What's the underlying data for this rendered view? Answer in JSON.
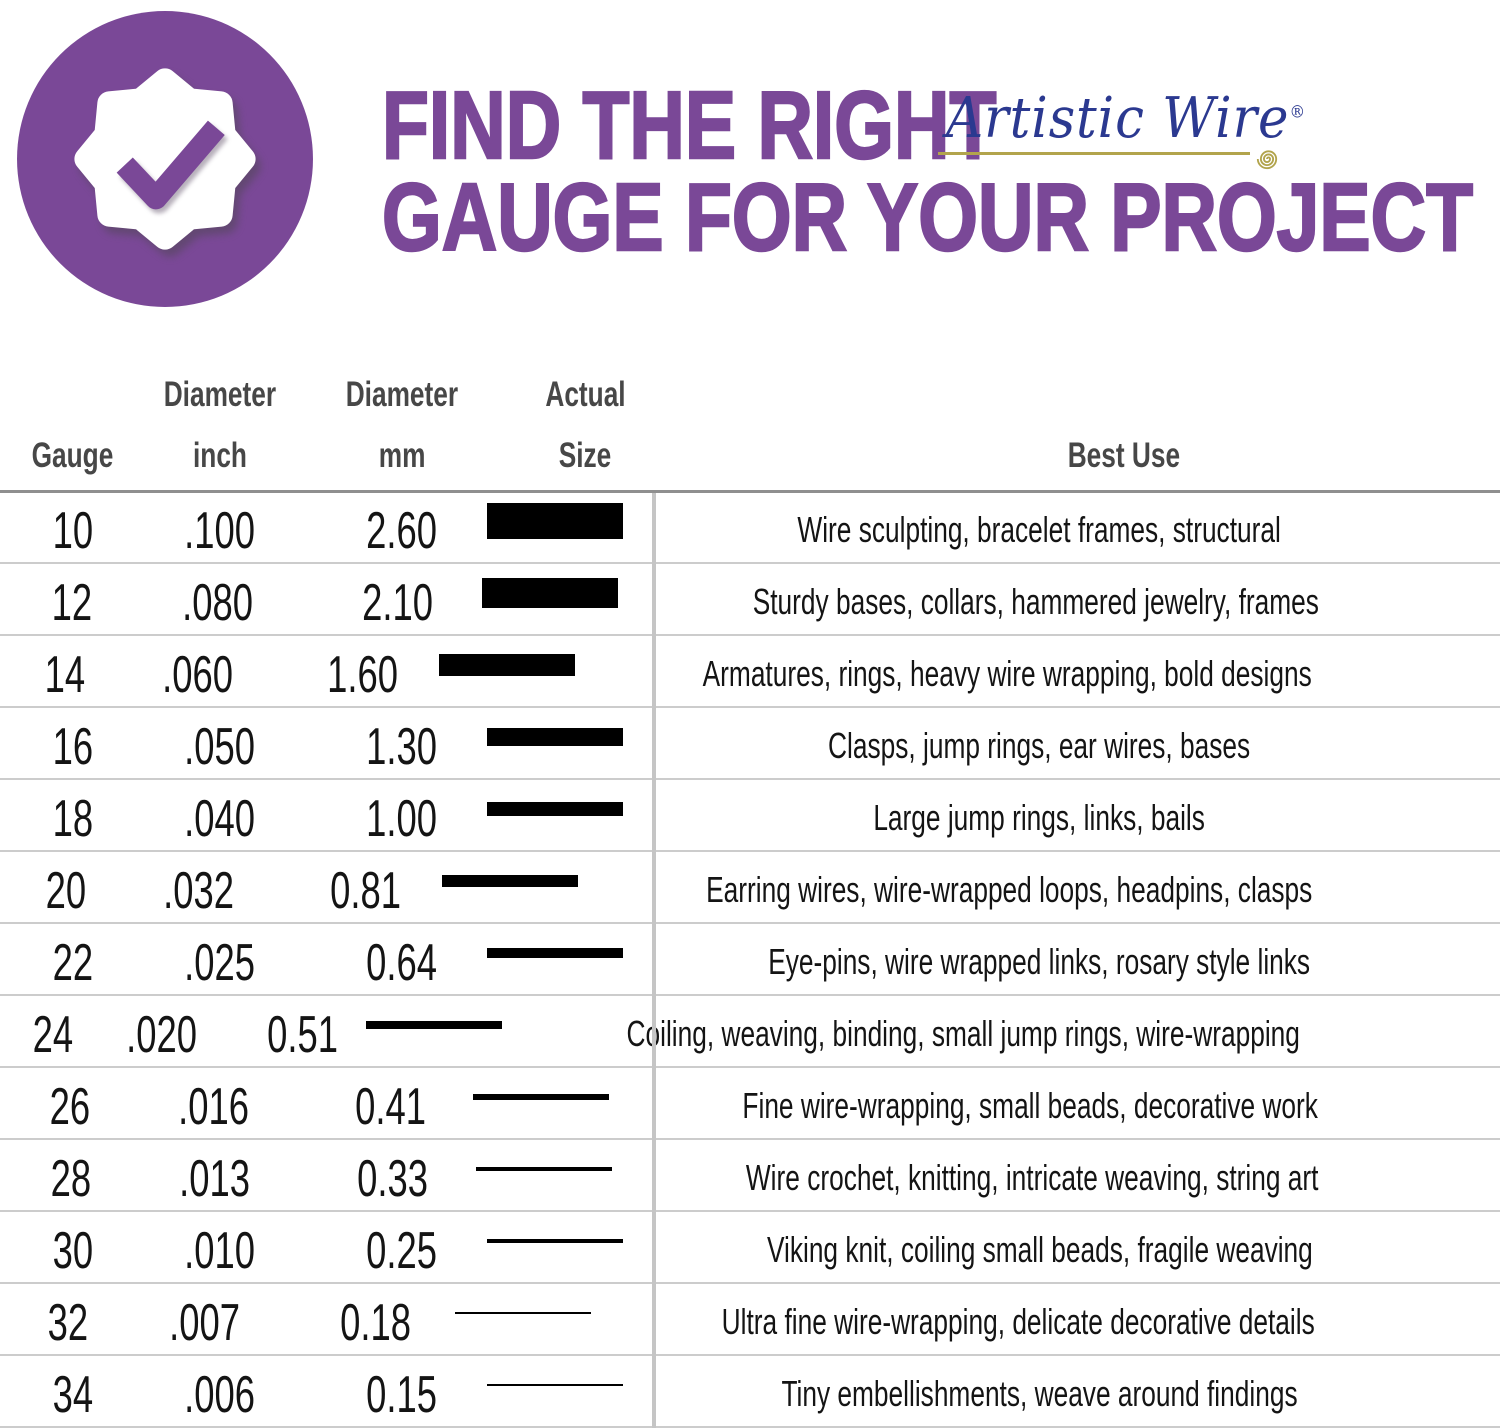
{
  "title": {
    "line1": "FIND THE RIGHT",
    "line2": "GAUGE FOR YOUR PROJECT"
  },
  "logo": {
    "name": "Artistic Wire",
    "registered": "®"
  },
  "badge": {
    "icon": "check-seal"
  },
  "table": {
    "headers": {
      "gauge": "Gauge",
      "diameter_inch_top": "Diameter",
      "diameter_inch_bottom": "inch",
      "diameter_mm_top": "Diameter",
      "diameter_mm_bottom": "mm",
      "actual_top": "Actual",
      "actual_bottom": "Size",
      "best_use": "Best Use"
    }
  },
  "chart_data": {
    "type": "table",
    "title": "FIND THE RIGHT GAUGE FOR YOUR PROJECT",
    "columns": [
      "Gauge",
      "Diameter inch",
      "Diameter mm",
      "Actual Size",
      "Best Use"
    ],
    "rows": [
      {
        "gauge": "10",
        "inch": ".100",
        "mm": "2.60",
        "best_use": "Wire sculpting, bracelet frames, structural"
      },
      {
        "gauge": "12",
        "inch": ".080",
        "mm": "2.10",
        "best_use": "Sturdy bases, collars, hammered jewelry, frames"
      },
      {
        "gauge": "14",
        "inch": ".060",
        "mm": "1.60",
        "best_use": "Armatures, rings, heavy wire wrapping, bold designs"
      },
      {
        "gauge": "16",
        "inch": ".050",
        "mm": "1.30",
        "best_use": "Clasps, jump rings, ear wires, bases"
      },
      {
        "gauge": "18",
        "inch": ".040",
        "mm": "1.00",
        "best_use": "Large jump rings, links, bails"
      },
      {
        "gauge": "20",
        "inch": ".032",
        "mm": "0.81",
        "best_use": "Earring wires, wire-wrapped loops, headpins, clasps"
      },
      {
        "gauge": "22",
        "inch": ".025",
        "mm": "0.64",
        "best_use": "Eye-pins, wire wrapped links, rosary style links"
      },
      {
        "gauge": "24",
        "inch": ".020",
        "mm": "0.51",
        "best_use": "Coiling, weaving, binding, small jump rings, wire-wrapping"
      },
      {
        "gauge": "26",
        "inch": ".016",
        "mm": "0.41",
        "best_use": "Fine wire-wrapping, small beads, decorative work"
      },
      {
        "gauge": "28",
        "inch": ".013",
        "mm": "0.33",
        "best_use": "Wire crochet, knitting, intricate weaving, string art"
      },
      {
        "gauge": "30",
        "inch": ".010",
        "mm": "0.25",
        "best_use": "Viking knit, coiling small beads, fragile weaving"
      },
      {
        "gauge": "32",
        "inch": ".007",
        "mm": "0.18",
        "best_use": "Ultra fine wire-wrapping, delicate decorative details"
      },
      {
        "gauge": "34",
        "inch": ".006",
        "mm": "0.15",
        "best_use": "Tiny embellishments, weave around findings"
      }
    ],
    "notes": "Actual Size column shows a solid black bar whose thickness equals the wire diameter in mm (bar thickness decreases as gauge number increases)"
  },
  "colors": {
    "purple": "#7A4897",
    "navy": "#2B3990",
    "gold": "#B2A44C",
    "bar_black": "#000000",
    "header_text": "#474747",
    "line_light": "#cccccc",
    "line_dark": "#8f8f8f",
    "divider": "#c5c5c5",
    "body_text": "#141414"
  }
}
